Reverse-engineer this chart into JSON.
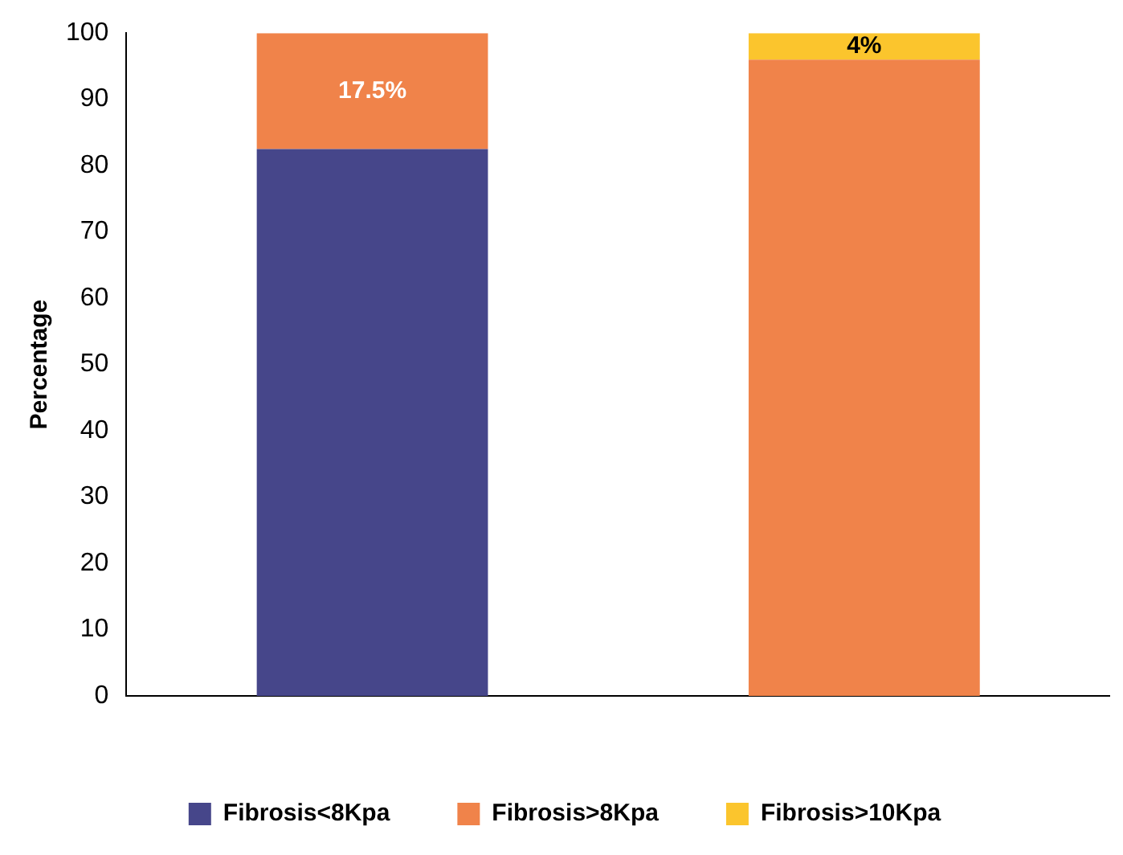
{
  "chart_data": {
    "type": "bar",
    "ylabel": "Percentage",
    "categories": [
      null,
      null
    ],
    "stacked": true,
    "series": [
      {
        "name": "Fibrosis<8Kpa",
        "color": "#46468a",
        "values": [
          82.5,
          null
        ]
      },
      {
        "name": "Fibrosis>8Kpa",
        "color": "#f0834a",
        "values": [
          17.5,
          96
        ],
        "value_labels": [
          "17.5%",
          null
        ]
      },
      {
        "name": "Fibrosis>10Kpa",
        "color": "#fbc52d",
        "values": [
          null,
          4
        ],
        "value_labels": [
          null,
          "4%"
        ]
      }
    ],
    "ylim": [
      0,
      100
    ],
    "yticks": [
      0,
      10,
      20,
      30,
      40,
      50,
      60,
      70,
      80,
      90,
      100
    ],
    "grid": false,
    "legend": "bottom"
  }
}
